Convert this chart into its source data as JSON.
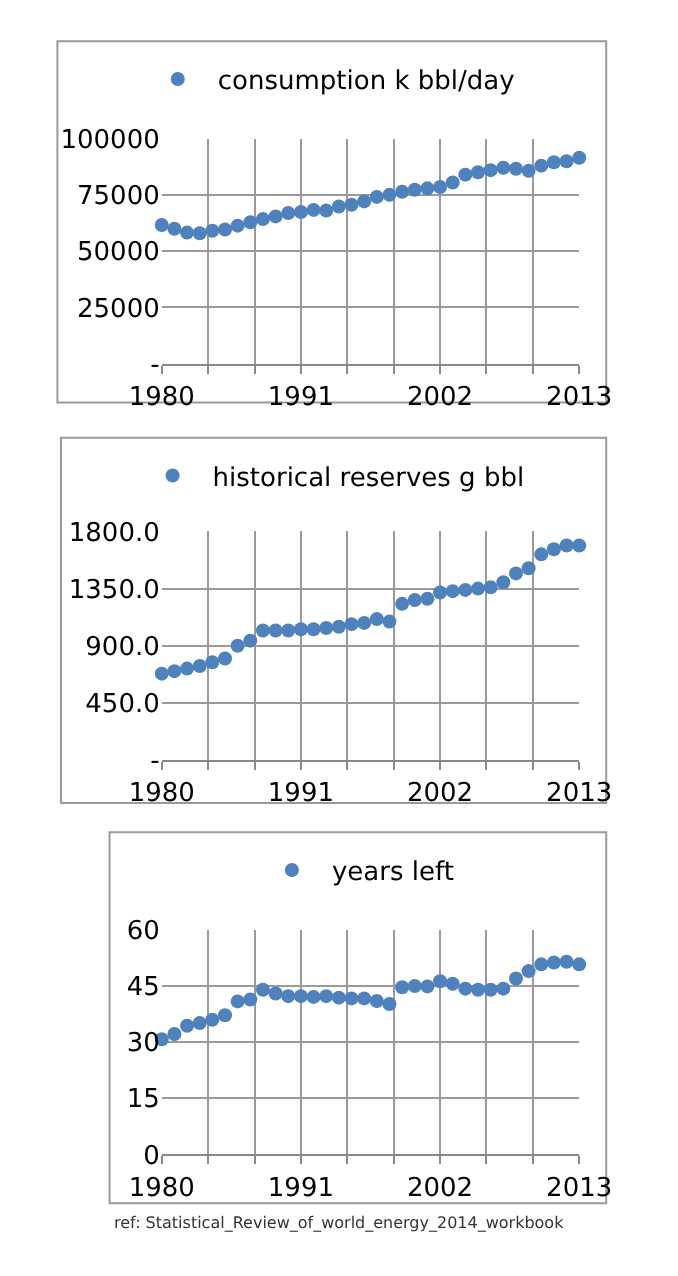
{
  "chart_data": [
    {
      "type": "scatter",
      "x": [
        1980,
        1981,
        1982,
        1983,
        1984,
        1985,
        1986,
        1987,
        1988,
        1989,
        1990,
        1991,
        1992,
        1993,
        1994,
        1995,
        1996,
        1997,
        1998,
        1999,
        2000,
        2001,
        2002,
        2003,
        2004,
        2005,
        2006,
        2007,
        2008,
        2009,
        2010,
        2011,
        2012,
        2013
      ],
      "series": [
        {
          "name": "consumption k bbl/day",
          "color": "#4f81bd",
          "values": [
            61700,
            60000,
            58300,
            58000,
            59100,
            59700,
            61400,
            62900,
            64300,
            65500,
            67000,
            67500,
            68400,
            68100,
            69900,
            70700,
            72200,
            74200,
            75100,
            76500,
            77400,
            78000,
            78600,
            80600,
            84100,
            85200,
            86100,
            87200,
            86700,
            85800,
            88100,
            89600,
            90100,
            91600
          ]
        }
      ],
      "xlim": [
        1980,
        2013
      ],
      "xticks": [
        1980,
        {
          "value": 1983.667,
          "label": null
        },
        {
          "value": 1987.333,
          "label": null
        },
        1991,
        {
          "value": 1994.667,
          "label": null
        },
        {
          "value": 1998.333,
          "label": null
        },
        2002,
        {
          "value": 2005.667,
          "label": null
        },
        {
          "value": 2009.333,
          "label": null
        },
        2013
      ],
      "ylim": [
        0,
        100000
      ],
      "yticks": [
        {
          "value": 0,
          "label": "-"
        },
        25000,
        50000,
        75000,
        100000
      ],
      "grid": true,
      "legend": "top",
      "marker": "circle"
    },
    {
      "type": "scatter",
      "x": [
        1980,
        1981,
        1982,
        1983,
        1984,
        1985,
        1986,
        1987,
        1988,
        1989,
        1990,
        1991,
        1992,
        1993,
        1994,
        1995,
        1996,
        1997,
        1998,
        1999,
        2000,
        2001,
        2002,
        2003,
        2004,
        2005,
        2006,
        2007,
        2008,
        2009,
        2010,
        2011,
        2012,
        2013
      ],
      "series": [
        {
          "name": "historical reserves g bbl",
          "color": "#4f81bd",
          "values": [
            680,
            700,
            720,
            740,
            770,
            800,
            900,
            940,
            1020,
            1020,
            1020,
            1030,
            1030,
            1040,
            1050,
            1070,
            1080,
            1110,
            1090,
            1230,
            1260,
            1270,
            1320,
            1330,
            1340,
            1350,
            1360,
            1400,
            1470,
            1510,
            1620,
            1660,
            1690,
            1690
          ]
        }
      ],
      "xlim": [
        1980,
        2013
      ],
      "xticks": [
        1980,
        {
          "value": 1983.667,
          "label": null
        },
        {
          "value": 1987.333,
          "label": null
        },
        1991,
        {
          "value": 1994.667,
          "label": null
        },
        {
          "value": 1998.333,
          "label": null
        },
        2002,
        {
          "value": 2005.667,
          "label": null
        },
        {
          "value": 2009.333,
          "label": null
        },
        2013
      ],
      "ylim": [
        0,
        1800
      ],
      "yticks": [
        {
          "value": 0,
          "label": "-"
        },
        {
          "value": 450,
          "label": "450.0"
        },
        {
          "value": 900,
          "label": "900.0"
        },
        {
          "value": 1350,
          "label": "1350.0"
        },
        {
          "value": 1800,
          "label": "1800.0"
        }
      ],
      "grid": true,
      "legend": "top",
      "marker": "circle"
    },
    {
      "type": "scatter",
      "x": [
        1980,
        1981,
        1982,
        1983,
        1984,
        1985,
        1986,
        1987,
        1988,
        1989,
        1990,
        1991,
        1992,
        1993,
        1994,
        1995,
        1996,
        1997,
        1998,
        1999,
        2000,
        2001,
        2002,
        2003,
        2004,
        2005,
        2006,
        2007,
        2008,
        2009,
        2010,
        2011,
        2012,
        2013
      ],
      "series": [
        {
          "name": "years left",
          "color": "#4f81bd",
          "values": [
            30.8,
            32.2,
            34.4,
            35.1,
            36.0,
            37.2,
            40.9,
            41.4,
            44.0,
            43.0,
            42.3,
            42.3,
            42.1,
            42.3,
            41.9,
            41.7,
            41.7,
            41.0,
            40.2,
            44.7,
            45.0,
            44.9,
            46.3,
            45.6,
            44.3,
            44.0,
            44.0,
            44.3,
            47.0,
            49.0,
            50.8,
            51.3,
            51.5,
            50.8
          ]
        }
      ],
      "xlim": [
        1980,
        2013
      ],
      "xticks": [
        1980,
        {
          "value": 1983.667,
          "label": null
        },
        {
          "value": 1987.333,
          "label": null
        },
        1991,
        {
          "value": 1994.667,
          "label": null
        },
        {
          "value": 1998.333,
          "label": null
        },
        2002,
        {
          "value": 2005.667,
          "label": null
        },
        {
          "value": 2009.333,
          "label": null
        },
        2013
      ],
      "ylim": [
        0,
        60
      ],
      "yticks": [
        0,
        15,
        30,
        45,
        60
      ],
      "grid": true,
      "legend": "top",
      "marker": "circle",
      "annotations": [
        "ref: Statistical_Review_of_world_energy_2014_workbook"
      ]
    }
  ]
}
